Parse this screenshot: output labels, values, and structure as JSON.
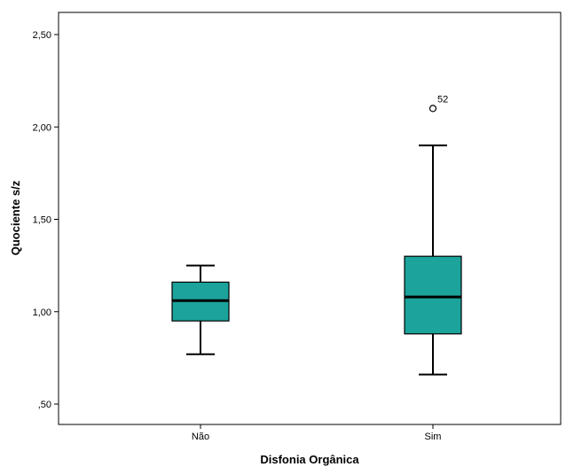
{
  "chart_data": {
    "type": "boxplot",
    "xlabel": "Disfonia Orgânica",
    "ylabel": "Quociente s/z",
    "ylim": [
      0.4,
      2.63
    ],
    "yticks": [
      0.5,
      1.0,
      1.5,
      2.0,
      2.5
    ],
    "ytick_labels": [
      ",50",
      "1,00",
      "1,50",
      "2,00",
      "2,50"
    ],
    "grid": false,
    "box_color": "#1ba39c",
    "categories": [
      "Não",
      "Sim"
    ],
    "boxes": [
      {
        "category": "Não",
        "whisker_low": 0.77,
        "q1": 0.95,
        "median": 1.06,
        "q3": 1.16,
        "whisker_high": 1.25,
        "outliers": []
      },
      {
        "category": "Sim",
        "whisker_low": 0.66,
        "q1": 0.88,
        "median": 1.08,
        "q3": 1.3,
        "whisker_high": 1.9,
        "outliers": [
          {
            "value": 2.1,
            "label": "52"
          }
        ]
      }
    ]
  }
}
